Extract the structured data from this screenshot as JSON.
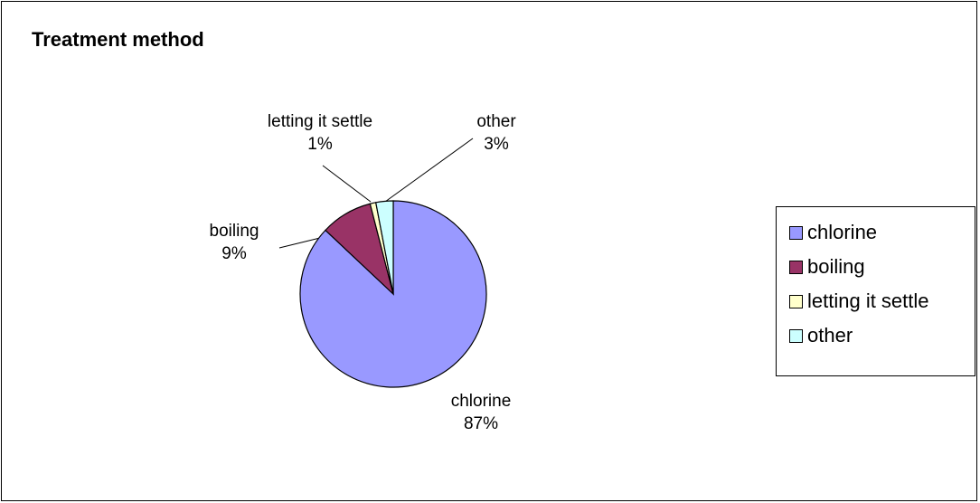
{
  "chart_data": {
    "type": "pie",
    "title": "Treatment method",
    "slices": [
      {
        "label": "chlorine",
        "value": 87,
        "value_label": "87%",
        "color": "#9999FF"
      },
      {
        "label": "boiling",
        "value": 9,
        "value_label": "9%",
        "color": "#993366"
      },
      {
        "label": "letting it settle",
        "value": 1,
        "value_label": "1%",
        "color": "#FFFFCC"
      },
      {
        "label": "other",
        "value": 3,
        "value_label": "3%",
        "color": "#CCFFFF"
      }
    ],
    "start_angle_deg": 0,
    "direction": "clockwise",
    "legend_position": "right",
    "data_labels": "category name and percentage"
  }
}
